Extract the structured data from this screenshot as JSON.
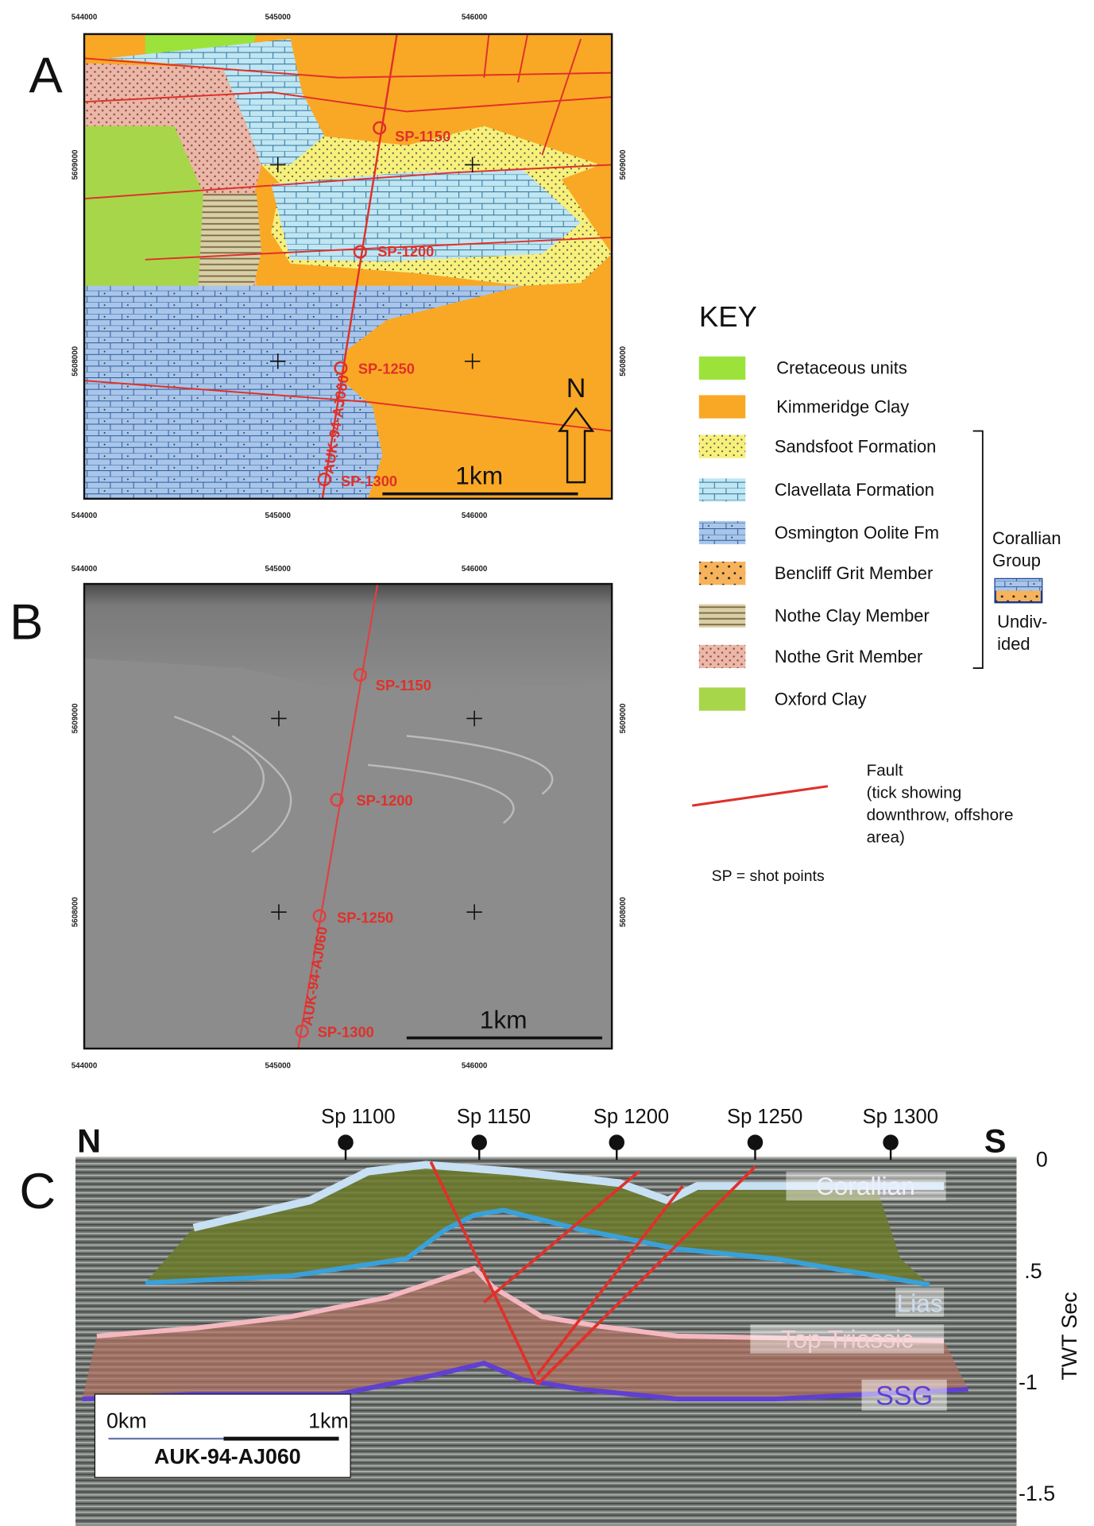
{
  "panel_a": {
    "label": "A",
    "x_ticks": [
      "544000",
      "545000",
      "546000"
    ],
    "y_ticks": [
      "5609000",
      "5608000"
    ],
    "shot_points": [
      "SP-1150",
      "SP-1200",
      "SP-1250",
      "SP-1300"
    ],
    "line_name": "AUK-94-AJ060",
    "scale_bar": "1km",
    "north": "N"
  },
  "panel_b": {
    "label": "B",
    "x_ticks": [
      "544000",
      "545000",
      "546000"
    ],
    "y_ticks": [
      "5609000",
      "5608000"
    ],
    "shot_points": [
      "SP-1150",
      "SP-1200",
      "SP-1250",
      "SP-1300"
    ],
    "line_name": "AUK-94-AJ060",
    "scale_bar": "1km"
  },
  "key": {
    "title": "KEY",
    "items": [
      "Cretaceous units",
      "Kimmeridge Clay",
      "Sandsfoot Formation",
      "Clavellata Formation",
      "Osmington Oolite Fm",
      "Bencliff Grit Member",
      "Nothe Clay Member",
      "Nothe Grit Member",
      "Oxford Clay"
    ],
    "group": [
      "Corallian",
      "Group"
    ],
    "undivided": [
      "Undiv-",
      "ided"
    ],
    "fault": "Fault",
    "fault_note": [
      "(tick showing",
      "downthrow, offshore",
      "area)"
    ],
    "sp_note": "SP = shot points"
  },
  "panel_c": {
    "label": "C",
    "north": "N",
    "south": "S",
    "shot_points": [
      "Sp 1100",
      "Sp 1150",
      "Sp 1200",
      "Sp 1250",
      "Sp 1300"
    ],
    "twt_ticks": [
      "0",
      ".5",
      "-1",
      "-1.5"
    ],
    "axis_label": "TWT Sec",
    "horizons": [
      "Corallian",
      "Lias",
      "Top Triassic",
      "SSG"
    ],
    "scale": [
      "0km",
      "1km"
    ],
    "line_name": "AUK-94-AJ060"
  }
}
